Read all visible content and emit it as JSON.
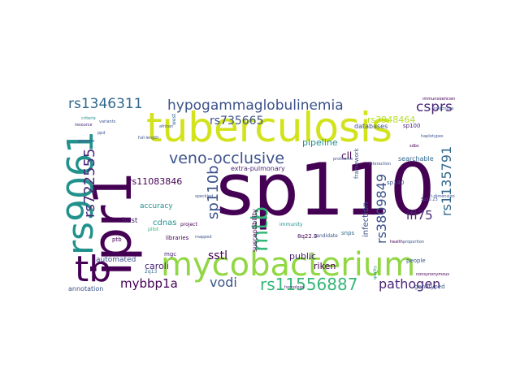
{
  "words": {
    "sp110": "sp110",
    "ipr1": "ipr1",
    "tuberculosis": "tuberculosis",
    "mycobacterium": "mycobacterium",
    "rs9061": "rs9061",
    "tb": "tb",
    "mtb": "mtb",
    "hypogammaglobulinemia": "hypogammaglobulinemia",
    "rs1346311": "rs1346311",
    "veno_occlusive": "veno-occlusive",
    "sp110b": "sp110b",
    "rs722555": "rs722555",
    "rs735665": "rs735665",
    "rs11556887": "rs11556887",
    "pathogen": "pathogen",
    "rs3809849": "rs3809849",
    "rs1135791": "rs1135791",
    "csprs": "csprs",
    "rs3948464": "rs3948464",
    "ifi75": "ifi75",
    "mybbp1a": "mybbp1a",
    "vodi": "vodi",
    "sstl": "sstl",
    "caroli": "caroli",
    "rs11083846": "rs11083846",
    "public": "public",
    "riken": "riken",
    "pipeline": "pipeline",
    "infection": "infection",
    "cll": "cll",
    "host": "host",
    "accuracy": "accuracy",
    "cdnas": "cdnas",
    "automated": "automated",
    "annotation": "annotation",
    "susceptibility": "susceptibility",
    "extra_pulmonary": "extra-pulmonary",
    "databases": "databases",
    "searchable": "searchable",
    "framework": "framework",
    "sp140": "sp140",
    "sp100": "sp100",
    "snps": "snps",
    "people": "people",
    "genotyped": "genotyped",
    "libraries": "libraries",
    "mgc": "mgc",
    "ptb": "ptb",
    "pilot": "pilot",
    "project": "project",
    "candidate": "candidate",
    "immunity": "immunity",
    "q8q22_3": "8q22.3",
    "q2q13": "2q13",
    "west": "west",
    "african": "african",
    "resource": "resource",
    "criteria": "criteria",
    "genome": "genome",
    "ppd": "ppd",
    "haplotypes": "haplotypes",
    "immunodeficiency": "immunodeficiency",
    "proteome": "proteome",
    "sp5_23": "5p15.23",
    "sdbs": "sdbs",
    "quality": "quality",
    "nonsynonymous": "nonsynonymous",
    "interaction": "interaction",
    "homologs": "homologs",
    "full_length": "full-length",
    "variants": "variants",
    "infectious": "infectious",
    "t_dimensional": "t-dimensional",
    "mapped": "mapped",
    "proportion": "proportion",
    "health": "health",
    "speckled": "speckled"
  },
  "colors": {
    "dark_purple": "#440154",
    "purple": "#482475",
    "indigo": "#3b528b",
    "blue": "#31688e",
    "teal": "#21918c",
    "green_teal": "#1f9e89",
    "green": "#35b779",
    "lime": "#90d743",
    "yellow_green": "#b5de2b",
    "yellow": "#dde318"
  }
}
